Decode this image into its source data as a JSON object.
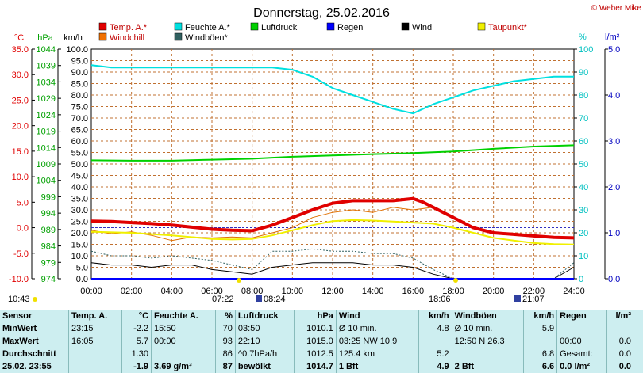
{
  "chart_data": {
    "type": "line",
    "title": "Donnerstag, 25.02.2016",
    "copyright": "© Weber Mike",
    "axes": {
      "temp": {
        "unit": "°C",
        "min": -10,
        "max": 35,
        "ticks": [
          "35.0",
          "30.0",
          "25.0",
          "20.0",
          "15.0",
          "10.0",
          "5.0",
          "0.0",
          "-5.0",
          "-10.0"
        ],
        "color": "#e00000"
      },
      "pressure": {
        "unit": "hPa",
        "min": 974,
        "max": 1044,
        "ticks": [
          "1044",
          "1039",
          "1034",
          "1029",
          "1024",
          "1019",
          "1014",
          "1009",
          "1004",
          "999",
          "994",
          "989",
          "984",
          "979",
          "974"
        ],
        "color": "#00a000"
      },
      "wind": {
        "unit": "km/h",
        "min": 0,
        "max": 100,
        "ticks": [
          "100.0",
          "95.0",
          "90.0",
          "85.0",
          "80.0",
          "75.0",
          "70.0",
          "65.0",
          "60.0",
          "55.0",
          "50.0",
          "45.0",
          "40.0",
          "35.0",
          "30.0",
          "25.0",
          "20.0",
          "15.0",
          "10.0",
          "5.0",
          "0.0"
        ]
      },
      "humidity": {
        "unit": "%",
        "min": 0,
        "max": 100,
        "ticks": [
          "100",
          "90",
          "80",
          "70",
          "60",
          "50",
          "40",
          "30",
          "20",
          "10",
          "0"
        ],
        "color": "#00c0c0"
      },
      "rain": {
        "unit": "l/m²",
        "min": 0,
        "max": 5,
        "ticks": [
          "5.0",
          "4.0",
          "3.0",
          "2.0",
          "1.0",
          "0.0"
        ],
        "color": "#0000c0"
      }
    },
    "x_ticks": [
      "00:00",
      "02:00",
      "04:00",
      "06:00",
      "08:00",
      "10:00",
      "12:00",
      "14:00",
      "16:00",
      "18:00",
      "20:00",
      "22:00",
      "24:00"
    ],
    "legend": [
      {
        "name": "Temp. A.*",
        "color": "#e00000"
      },
      {
        "name": "Feuchte A.*",
        "color": "#00e0e0"
      },
      {
        "name": "Luftdruck",
        "color": "#00d000"
      },
      {
        "name": "Regen",
        "color": "#0000ff"
      },
      {
        "name": "Wind",
        "color": "#000000"
      },
      {
        "name": "Taupunkt*",
        "color": "#f0f000"
      },
      {
        "name": "Windchill",
        "color": "#f07000"
      },
      {
        "name": "Windböen*",
        "color": "#306060"
      }
    ],
    "sun_labels": {
      "sunrise": "07:22",
      "sunset": "18:06",
      "moonrise": "08:24",
      "moonset": "21:07",
      "daylength": "10:43"
    },
    "series": {
      "temp": {
        "x": [
          0,
          1,
          2,
          3,
          4,
          5,
          6,
          7,
          8,
          9,
          10,
          11,
          12,
          13,
          14,
          15,
          15.5,
          16,
          16.5,
          17,
          18,
          19,
          20,
          21,
          22,
          23,
          24
        ],
        "y": [
          1.3,
          1.2,
          1.0,
          0.8,
          0.5,
          0.1,
          -0.3,
          -0.5,
          -0.6,
          0.5,
          2.0,
          3.5,
          4.8,
          5.3,
          5.3,
          5.3,
          5.5,
          5.7,
          5.0,
          4.0,
          2.0,
          0.0,
          -1.0,
          -1.3,
          -1.6,
          -1.9,
          -2.0
        ]
      },
      "humidity": {
        "x": [
          0,
          1,
          2,
          3,
          4,
          5,
          6,
          7,
          8,
          9,
          10,
          11,
          12,
          13,
          14,
          15,
          16,
          17,
          18,
          19,
          20,
          21,
          22,
          23,
          24
        ],
        "y": [
          93,
          92,
          92,
          92,
          92,
          92,
          92,
          92,
          92,
          92,
          91,
          88,
          83,
          80,
          77,
          74,
          72,
          76,
          79,
          82,
          84,
          86,
          87,
          88,
          88
        ]
      },
      "pressure": {
        "x": [
          0,
          2,
          4,
          6,
          8,
          10,
          12,
          14,
          16,
          18,
          20,
          22,
          24
        ],
        "y": [
          1010.1,
          1010.0,
          1010.0,
          1010.3,
          1010.6,
          1011.2,
          1011.6,
          1012.0,
          1012.3,
          1012.8,
          1013.6,
          1014.3,
          1014.7
        ]
      },
      "dewpoint": {
        "x": [
          0,
          2,
          4,
          6,
          7,
          8,
          9,
          10,
          11,
          12,
          13,
          14,
          15,
          16,
          17,
          18,
          19,
          20,
          21,
          22,
          23,
          24
        ],
        "y": [
          -0.8,
          -1.0,
          -1.5,
          -2.2,
          -2.3,
          -2.2,
          -1.5,
          -0.5,
          0.5,
          1.3,
          1.5,
          1.4,
          1.2,
          1.0,
          0.8,
          0.0,
          -1.0,
          -2.0,
          -2.5,
          -3.0,
          -3.2,
          -3.3
        ]
      },
      "windchill": {
        "x": [
          0,
          1,
          2,
          3,
          4,
          5,
          6,
          7,
          8,
          9,
          10,
          11,
          12,
          13,
          14,
          15,
          16,
          17,
          18
        ],
        "y": [
          -0.5,
          -1.2,
          -0.8,
          -1.5,
          -2.5,
          -1.8,
          -2.0,
          -1.8,
          -2.0,
          -1.0,
          0.0,
          2.0,
          3.0,
          3.5,
          3.0,
          4.0,
          3.5,
          4.0,
          2.0
        ]
      },
      "wind": {
        "x": [
          0,
          1,
          2,
          3,
          4,
          5,
          6,
          7,
          8,
          9,
          10,
          11,
          12,
          13,
          14,
          15,
          16,
          17,
          18,
          19,
          20,
          21,
          22,
          23,
          24
        ],
        "y": [
          7,
          6,
          6,
          5,
          6,
          6,
          4,
          3,
          2,
          5,
          6,
          7,
          7,
          7,
          6,
          6,
          5,
          2,
          0,
          0,
          0,
          0,
          0,
          0,
          5
        ]
      },
      "gusts": {
        "x": [
          0,
          1,
          2,
          3,
          4,
          5,
          6,
          7,
          8,
          9,
          10,
          11,
          12,
          13,
          14,
          15,
          16,
          17,
          18,
          19,
          20,
          21,
          22,
          23,
          24
        ],
        "y": [
          12,
          10,
          10,
          9,
          10,
          9,
          8,
          6,
          4,
          12,
          12,
          13,
          12,
          12,
          11,
          11,
          9,
          4,
          0,
          0,
          0,
          0,
          0,
          0,
          7
        ]
      },
      "rain": {
        "x": [
          0,
          24
        ],
        "y": [
          0,
          0
        ]
      }
    },
    "reference_line": {
      "value": 0,
      "axis": "temp"
    }
  },
  "stats": {
    "header": {
      "sensor": "Sensor",
      "temp": "Temp. A.",
      "temp_unit": "°C",
      "hum": "Feuchte A.",
      "hum_unit": "%",
      "press": "Luftdruck",
      "press_unit": "hPa",
      "wind": "Wind",
      "wind_unit": "km/h",
      "gust": "Windböen",
      "gust_unit": "km/h",
      "rain": "Regen",
      "rain_unit": "l/m²"
    },
    "rows": [
      [
        "MinWert",
        "23:15",
        "-2.2",
        "15:50",
        "70",
        "03:50",
        "1010.1",
        "Ø 10 min.",
        "4.8",
        "Ø 10 min.",
        "5.9",
        "",
        ""
      ],
      [
        "MaxWert",
        "16:05",
        "5.7",
        "00:00",
        "93",
        "22:10",
        "1015.0",
        "03:25    NW 10.9",
        "",
        "12:50    N 26.3",
        "",
        "00:00",
        "0.0"
      ],
      [
        "Durchschnitt",
        "",
        "1.30",
        "",
        "86",
        "^0.7hPa/h",
        "1012.5",
        "125.4 km",
        "5.2",
        "",
        "6.8",
        "Gesamt:",
        "0.0"
      ],
      [
        "25.02. 23:55",
        "",
        "-1.9",
        "3.69 g/m³",
        "87",
        "bewölkt",
        "1014.7",
        "1 Bft",
        "4.9",
        "2 Bft",
        "6.6",
        "0.0 l/m²",
        "0.0"
      ]
    ]
  }
}
